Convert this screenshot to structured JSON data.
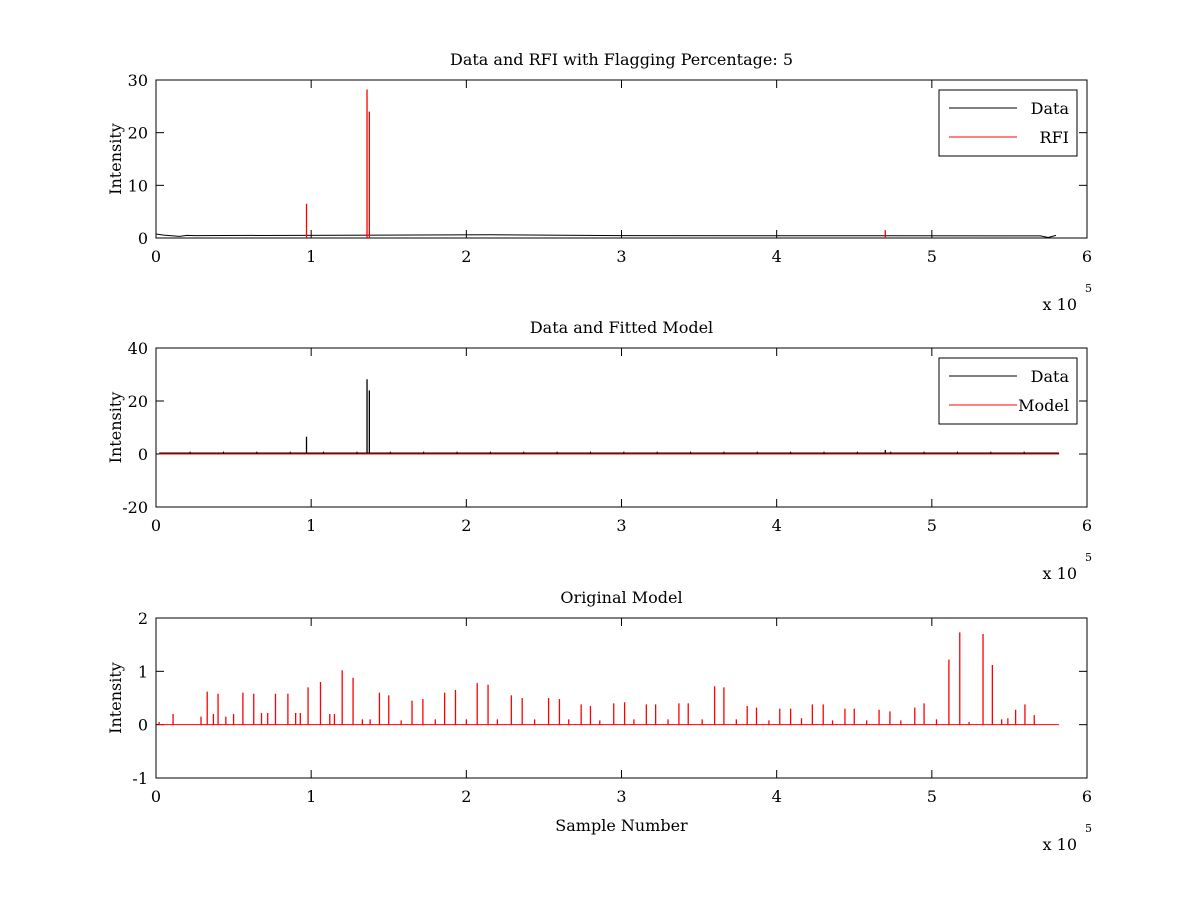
{
  "figure": {
    "background": "#ffffff"
  },
  "chart_data": [
    {
      "type": "line",
      "title": "Data and RFI with Flagging Percentage: 5",
      "xlabel": "",
      "ylabel": "Intensity",
      "xlim": [
        0,
        6
      ],
      "ylim": [
        0,
        30
      ],
      "xticks": [
        "0",
        "1",
        "2",
        "3",
        "4",
        "5",
        "6"
      ],
      "yticks": [
        "0",
        "10",
        "20",
        "30"
      ],
      "x_multiplier": {
        "base": "x 10",
        "exponent": "5"
      },
      "legend": {
        "position": "top-right",
        "entries": [
          "Data",
          "RFI"
        ]
      },
      "series": [
        {
          "name": "Data",
          "color": "#000000",
          "baseline": 0.45,
          "points": [
            [
              0,
              0.8
            ],
            [
              0.01,
              0.7
            ],
            [
              0.05,
              0.55
            ],
            [
              0.15,
              0.3
            ],
            [
              0.2,
              0.5
            ],
            [
              0.25,
              0.45
            ],
            [
              2.15,
              0.6
            ],
            [
              3.0,
              0.45
            ],
            [
              5.7,
              0.4
            ],
            [
              5.75,
              0.1
            ],
            [
              5.8,
              0.5
            ]
          ]
        },
        {
          "name": "RFI",
          "color": "#ff0000",
          "spikes": [
            {
              "x": 0.97,
              "y": 6.5
            },
            {
              "x": 1.36,
              "y": 28.2
            },
            {
              "x": 1.375,
              "y": 24.0
            },
            {
              "x": 4.7,
              "y": 1.5
            }
          ]
        }
      ]
    },
    {
      "type": "line",
      "title": "Data and Fitted Model",
      "xlabel": "",
      "ylabel": "Intensity",
      "xlim": [
        0,
        6
      ],
      "ylim": [
        -20,
        40
      ],
      "xticks": [
        "0",
        "1",
        "2",
        "3",
        "4",
        "5",
        "6"
      ],
      "yticks": [
        "-20",
        "0",
        "20",
        "40"
      ],
      "x_multiplier": {
        "base": "x 10",
        "exponent": "5"
      },
      "legend": {
        "position": "top-right",
        "entries": [
          "Data",
          "Model"
        ]
      },
      "series": [
        {
          "name": "Data",
          "color": "#000000",
          "baseline": 0.4,
          "spikes": [
            {
              "x": 0.97,
              "y": 6.5
            },
            {
              "x": 1.36,
              "y": 28.2
            },
            {
              "x": 1.375,
              "y": 24.0
            },
            {
              "x": 4.7,
              "y": 1.5
            }
          ]
        },
        {
          "name": "Model",
          "color": "#ff0000",
          "baseline": 0.0
        }
      ]
    },
    {
      "type": "line",
      "title": "Original Model",
      "xlabel": "Sample Number",
      "ylabel": "Intensity",
      "xlim": [
        0,
        6
      ],
      "ylim": [
        -1,
        2
      ],
      "xticks": [
        "0",
        "1",
        "2",
        "3",
        "4",
        "5",
        "6"
      ],
      "yticks": [
        "-1",
        "0",
        "1",
        "2"
      ],
      "x_multiplier": {
        "base": "x 10",
        "exponent": "5"
      },
      "series": [
        {
          "name": "",
          "color": "#ff0000",
          "baseline": 0.0,
          "x_end": 5.82,
          "spikes": [
            {
              "x": 0.02,
              "y": 0.05
            },
            {
              "x": 0.11,
              "y": 0.2
            },
            {
              "x": 0.29,
              "y": 0.15
            },
            {
              "x": 0.33,
              "y": 0.62
            },
            {
              "x": 0.37,
              "y": 0.2
            },
            {
              "x": 0.4,
              "y": 0.58
            },
            {
              "x": 0.45,
              "y": 0.15
            },
            {
              "x": 0.5,
              "y": 0.2
            },
            {
              "x": 0.56,
              "y": 0.6
            },
            {
              "x": 0.63,
              "y": 0.58
            },
            {
              "x": 0.68,
              "y": 0.22
            },
            {
              "x": 0.72,
              "y": 0.22
            },
            {
              "x": 0.77,
              "y": 0.58
            },
            {
              "x": 0.85,
              "y": 0.58
            },
            {
              "x": 0.9,
              "y": 0.22
            },
            {
              "x": 0.93,
              "y": 0.22
            },
            {
              "x": 0.98,
              "y": 0.7
            },
            {
              "x": 1.06,
              "y": 0.8
            },
            {
              "x": 1.12,
              "y": 0.2
            },
            {
              "x": 1.15,
              "y": 0.2
            },
            {
              "x": 1.2,
              "y": 1.02
            },
            {
              "x": 1.27,
              "y": 0.88
            },
            {
              "x": 1.33,
              "y": 0.1
            },
            {
              "x": 1.38,
              "y": 0.1
            },
            {
              "x": 1.44,
              "y": 0.6
            },
            {
              "x": 1.5,
              "y": 0.55
            },
            {
              "x": 1.58,
              "y": 0.08
            },
            {
              "x": 1.65,
              "y": 0.45
            },
            {
              "x": 1.72,
              "y": 0.48
            },
            {
              "x": 1.8,
              "y": 0.1
            },
            {
              "x": 1.86,
              "y": 0.6
            },
            {
              "x": 1.93,
              "y": 0.65
            },
            {
              "x": 2.0,
              "y": 0.1
            },
            {
              "x": 2.07,
              "y": 0.78
            },
            {
              "x": 2.14,
              "y": 0.75
            },
            {
              "x": 2.2,
              "y": 0.1
            },
            {
              "x": 2.29,
              "y": 0.55
            },
            {
              "x": 2.36,
              "y": 0.5
            },
            {
              "x": 2.44,
              "y": 0.1
            },
            {
              "x": 2.53,
              "y": 0.5
            },
            {
              "x": 2.6,
              "y": 0.48
            },
            {
              "x": 2.66,
              "y": 0.1
            },
            {
              "x": 2.74,
              "y": 0.38
            },
            {
              "x": 2.8,
              "y": 0.35
            },
            {
              "x": 2.86,
              "y": 0.08
            },
            {
              "x": 2.95,
              "y": 0.4
            },
            {
              "x": 3.02,
              "y": 0.42
            },
            {
              "x": 3.08,
              "y": 0.1
            },
            {
              "x": 3.16,
              "y": 0.38
            },
            {
              "x": 3.22,
              "y": 0.38
            },
            {
              "x": 3.3,
              "y": 0.1
            },
            {
              "x": 3.37,
              "y": 0.4
            },
            {
              "x": 3.43,
              "y": 0.4
            },
            {
              "x": 3.52,
              "y": 0.1
            },
            {
              "x": 3.6,
              "y": 0.72
            },
            {
              "x": 3.66,
              "y": 0.7
            },
            {
              "x": 3.74,
              "y": 0.1
            },
            {
              "x": 3.81,
              "y": 0.35
            },
            {
              "x": 3.87,
              "y": 0.32
            },
            {
              "x": 3.95,
              "y": 0.08
            },
            {
              "x": 4.02,
              "y": 0.3
            },
            {
              "x": 4.09,
              "y": 0.3
            },
            {
              "x": 4.16,
              "y": 0.12
            },
            {
              "x": 4.23,
              "y": 0.38
            },
            {
              "x": 4.3,
              "y": 0.38
            },
            {
              "x": 4.36,
              "y": 0.08
            },
            {
              "x": 4.44,
              "y": 0.3
            },
            {
              "x": 4.5,
              "y": 0.3
            },
            {
              "x": 4.58,
              "y": 0.08
            },
            {
              "x": 4.66,
              "y": 0.28
            },
            {
              "x": 4.73,
              "y": 0.25
            },
            {
              "x": 4.8,
              "y": 0.08
            },
            {
              "x": 4.89,
              "y": 0.32
            },
            {
              "x": 4.95,
              "y": 0.4
            },
            {
              "x": 5.03,
              "y": 0.1
            },
            {
              "x": 5.11,
              "y": 1.22
            },
            {
              "x": 5.18,
              "y": 1.73
            },
            {
              "x": 5.24,
              "y": 0.05
            },
            {
              "x": 5.33,
              "y": 1.7
            },
            {
              "x": 5.39,
              "y": 1.12
            },
            {
              "x": 5.45,
              "y": 0.1
            },
            {
              "x": 5.49,
              "y": 0.12
            },
            {
              "x": 5.54,
              "y": 0.28
            },
            {
              "x": 5.6,
              "y": 0.38
            },
            {
              "x": 5.66,
              "y": 0.18
            }
          ]
        }
      ]
    }
  ]
}
